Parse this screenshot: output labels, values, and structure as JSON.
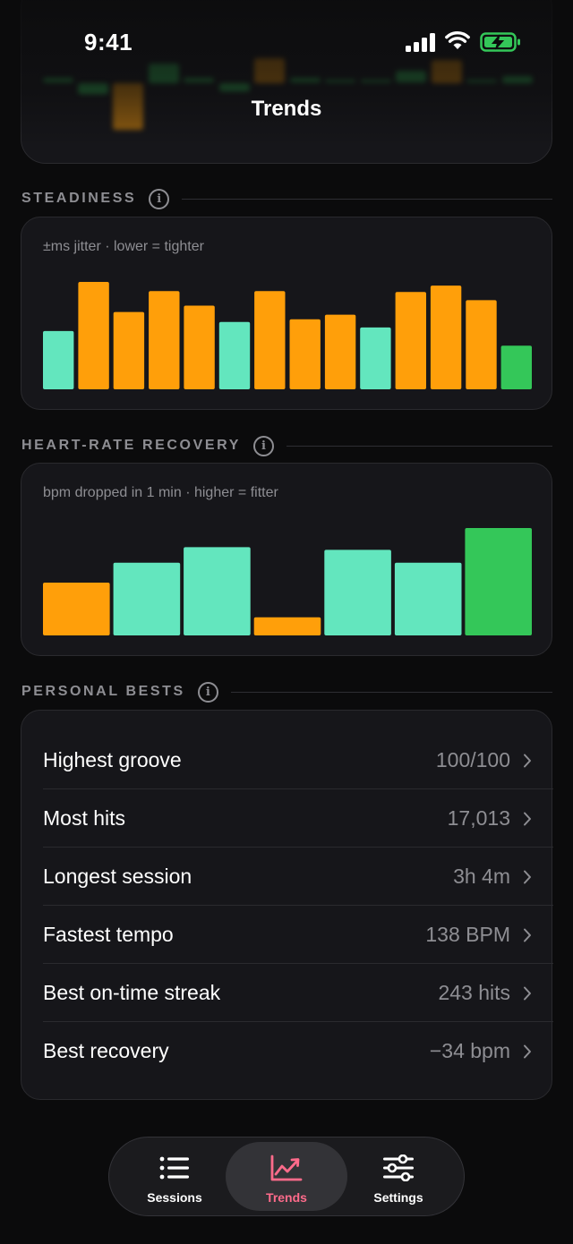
{
  "status_bar": {
    "time": "9:41"
  },
  "nav": {
    "title": "Trends"
  },
  "sections": {
    "steadiness": {
      "label": "STEADINESS",
      "subtitle": "±ms jitter · lower = tighter"
    },
    "hrr": {
      "label": "HEART-RATE RECOVERY",
      "subtitle": "bpm dropped in 1 min · higher = fitter"
    },
    "bests": {
      "label": "PERSONAL BESTS"
    }
  },
  "colors": {
    "teal": "#63e6be",
    "orange": "#ff9f0a",
    "green": "#34c759",
    "accent": "#ff6b8b",
    "muted": "#8e8e93"
  },
  "chart_data": [
    {
      "type": "bar",
      "title": "STEADINESS",
      "subtitle": "±ms jitter · lower = tighter",
      "values": [
        64,
        118,
        85,
        108,
        92,
        74,
        108,
        77,
        82,
        68,
        107,
        114,
        98,
        48
      ],
      "colors": [
        "teal",
        "orange",
        "orange",
        "orange",
        "orange",
        "teal",
        "orange",
        "orange",
        "orange",
        "teal",
        "orange",
        "orange",
        "orange",
        "green"
      ],
      "ylim": [
        0,
        120
      ]
    },
    {
      "type": "bar",
      "title": "HEART-RATE RECOVERY",
      "subtitle": "bpm dropped in 1 min · higher = fitter",
      "values": [
        58,
        80,
        97,
        20,
        94,
        80,
        118
      ],
      "colors": [
        "orange",
        "teal",
        "teal",
        "orange",
        "teal",
        "teal",
        "green"
      ],
      "ylim": [
        0,
        120
      ]
    }
  ],
  "personal_bests": [
    {
      "label": "Highest groove",
      "value": "100/100"
    },
    {
      "label": "Most hits",
      "value": "17,013"
    },
    {
      "label": "Longest session",
      "value": "3h 4m"
    },
    {
      "label": "Fastest tempo",
      "value": "138 BPM"
    },
    {
      "label": "Best on-time streak",
      "value": "243 hits"
    },
    {
      "label": "Best recovery",
      "value": "−34 bpm"
    }
  ],
  "tabs": [
    {
      "label": "Sessions",
      "icon": "list-icon",
      "active": false
    },
    {
      "label": "Trends",
      "icon": "chart-line-icon",
      "active": true
    },
    {
      "label": "Settings",
      "icon": "sliders-icon",
      "active": false
    }
  ]
}
